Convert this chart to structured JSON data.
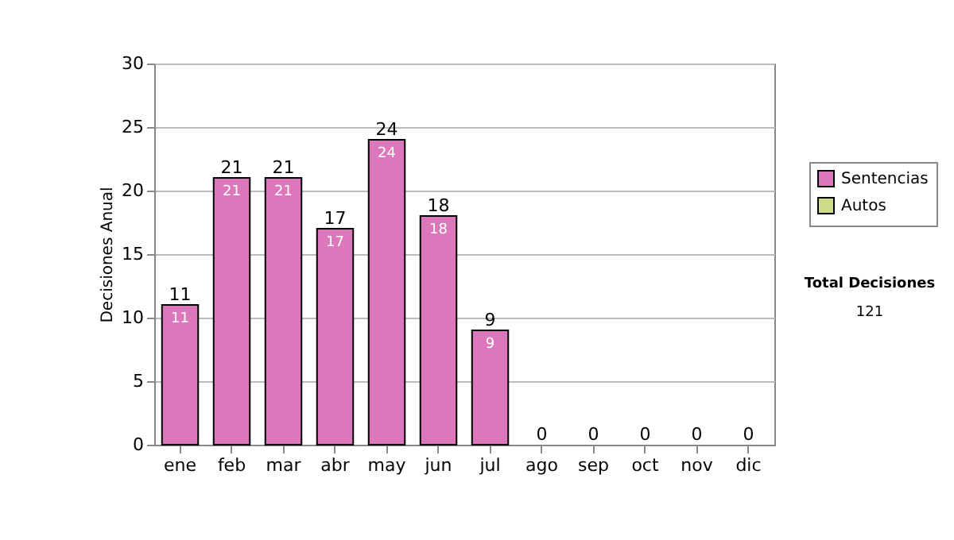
{
  "chart_data": {
    "type": "bar",
    "ylabel": "Decisiones Anual",
    "categories": [
      "ene",
      "feb",
      "mar",
      "abr",
      "may",
      "jun",
      "jul",
      "ago",
      "sep",
      "oct",
      "nov",
      "dic"
    ],
    "stacked": true,
    "series": [
      {
        "name": "Sentencias",
        "color": "#dd77bb",
        "values": [
          11,
          21,
          21,
          17,
          24,
          18,
          9,
          0,
          0,
          0,
          0,
          0
        ],
        "value_labels": [
          "11",
          "21",
          "21",
          "17",
          "24",
          "18",
          "9",
          null,
          null,
          null,
          null,
          null
        ]
      },
      {
        "name": "Autos",
        "color": "#ccdd88",
        "values": [
          0,
          0,
          0,
          0,
          0,
          0,
          0,
          0,
          0,
          0,
          0,
          0
        ]
      }
    ],
    "totals": [
      "11",
      "21",
      "21",
      "17",
      "24",
      "18",
      "9",
      "0",
      "0",
      "0",
      "0",
      "0"
    ],
    "ylim": [
      0,
      30
    ],
    "yticks": [
      0,
      5,
      10,
      15,
      20,
      25,
      30
    ],
    "grid": "y",
    "legend": "right",
    "annotations": [
      "Total Decisiones",
      "121"
    ]
  }
}
